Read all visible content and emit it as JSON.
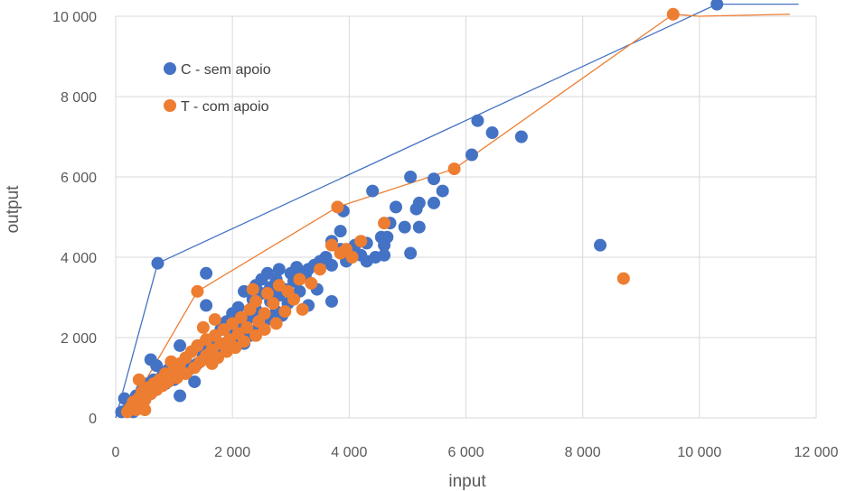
{
  "chart_data": {
    "type": "scatter",
    "xlabel": "input",
    "ylabel": "output",
    "xlim": [
      0,
      12000
    ],
    "ylim": [
      0,
      10000
    ],
    "x_ticks": [
      0,
      2000,
      4000,
      6000,
      8000,
      10000,
      12000
    ],
    "y_ticks": [
      0,
      2000,
      4000,
      6000,
      8000,
      10000
    ],
    "x_tick_labels": [
      "0",
      "2 000",
      "4 000",
      "6 000",
      "8 000",
      "10 000",
      "12 000"
    ],
    "y_tick_labels": [
      "0",
      "2 000",
      "4 000",
      "6 000",
      "8 000",
      "10 000"
    ],
    "grid": "vertical and horizontal major gridlines",
    "legend_position": "top-left",
    "series": [
      {
        "name": "C - sem apoio",
        "color": "#4472C4",
        "points": [
          [
            10300,
            10300
          ],
          [
            6200,
            7400
          ],
          [
            6450,
            7100
          ],
          [
            6950,
            7000
          ],
          [
            6100,
            6550
          ],
          [
            5050,
            6000
          ],
          [
            5450,
            5950
          ],
          [
            5600,
            5650
          ],
          [
            4400,
            5650
          ],
          [
            5200,
            5350
          ],
          [
            5450,
            5350
          ],
          [
            4800,
            5250
          ],
          [
            5150,
            5200
          ],
          [
            3900,
            5150
          ],
          [
            4950,
            4750
          ],
          [
            5200,
            4750
          ],
          [
            3850,
            4650
          ],
          [
            4550,
            4500
          ],
          [
            4650,
            4500
          ],
          [
            4300,
            4350
          ],
          [
            3700,
            4400
          ],
          [
            4100,
            4300
          ],
          [
            4600,
            4300
          ],
          [
            3850,
            4200
          ],
          [
            8300,
            4300
          ],
          [
            4000,
            4100
          ],
          [
            4200,
            4050
          ],
          [
            4600,
            4050
          ],
          [
            5050,
            4100
          ],
          [
            3600,
            4000
          ],
          [
            4450,
            4000
          ],
          [
            3500,
            3900
          ],
          [
            3950,
            3900
          ],
          [
            4300,
            3900
          ],
          [
            3400,
            3800
          ],
          [
            3700,
            3800
          ],
          [
            2800,
            3700
          ],
          [
            3100,
            3750
          ],
          [
            3300,
            3700
          ],
          [
            2600,
            3600
          ],
          [
            3000,
            3600
          ],
          [
            3250,
            3550
          ],
          [
            2500,
            3450
          ],
          [
            2750,
            3450
          ],
          [
            3050,
            3400
          ],
          [
            2400,
            3300
          ],
          [
            2650,
            3250
          ],
          [
            2900,
            3200
          ],
          [
            3150,
            3150
          ],
          [
            3450,
            3200
          ],
          [
            2200,
            3150
          ],
          [
            2500,
            3100
          ],
          [
            2800,
            3050
          ],
          [
            3050,
            3000
          ],
          [
            2350,
            2950
          ],
          [
            2650,
            2900
          ],
          [
            2950,
            2850
          ],
          [
            3300,
            2800
          ],
          [
            3700,
            2900
          ],
          [
            2100,
            2750
          ],
          [
            2400,
            2700
          ],
          [
            2750,
            2650
          ],
          [
            2000,
            2600
          ],
          [
            2300,
            2500
          ],
          [
            2600,
            2450
          ],
          [
            1900,
            2400
          ],
          [
            2150,
            2300
          ],
          [
            2450,
            2250
          ],
          [
            1800,
            2200
          ],
          [
            2050,
            2100
          ],
          [
            2300,
            2050
          ],
          [
            1700,
            2000
          ],
          [
            1950,
            1950
          ],
          [
            2200,
            1850
          ],
          [
            1600,
            1850
          ],
          [
            1850,
            1750
          ],
          [
            1450,
            1800
          ],
          [
            1700,
            1650
          ],
          [
            1100,
            1800
          ],
          [
            1300,
            1650
          ],
          [
            1500,
            1550
          ],
          [
            1200,
            1450
          ],
          [
            1400,
            1350
          ],
          [
            1050,
            1300
          ],
          [
            1250,
            1200
          ],
          [
            900,
            1200
          ],
          [
            1100,
            1100
          ],
          [
            800,
            1050
          ],
          [
            1000,
            950
          ],
          [
            650,
            950
          ],
          [
            850,
            850
          ],
          [
            550,
            850
          ],
          [
            700,
            750
          ],
          [
            450,
            700
          ],
          [
            600,
            600
          ],
          [
            350,
            550
          ],
          [
            500,
            450
          ],
          [
            250,
            400
          ],
          [
            400,
            300
          ],
          [
            200,
            200
          ],
          [
            300,
            150
          ],
          [
            100,
            150
          ],
          [
            700,
            1300
          ],
          [
            600,
            1450
          ],
          [
            1550,
            2800
          ],
          [
            1550,
            3600
          ],
          [
            720,
            3850
          ],
          [
            150,
            480
          ],
          [
            1100,
            550
          ],
          [
            1350,
            900
          ],
          [
            4700,
            4850
          ],
          [
            1750,
            1550
          ],
          [
            2050,
            1800
          ],
          [
            2500,
            2300
          ],
          [
            2850,
            2550
          ]
        ]
      },
      {
        "name": "T - com apoio",
        "color": "#ED7D31",
        "points": [
          [
            9550,
            10050
          ],
          [
            5800,
            6200
          ],
          [
            3800,
            5250
          ],
          [
            4600,
            4850
          ],
          [
            3700,
            4300
          ],
          [
            4200,
            4400
          ],
          [
            4050,
            4000
          ],
          [
            3850,
            4100
          ],
          [
            8700,
            3470
          ],
          [
            1400,
            3150
          ],
          [
            3500,
            3700
          ],
          [
            3150,
            3450
          ],
          [
            2800,
            3300
          ],
          [
            3350,
            3350
          ],
          [
            2950,
            3150
          ],
          [
            2600,
            3100
          ],
          [
            2400,
            2900
          ],
          [
            2700,
            2850
          ],
          [
            3050,
            2950
          ],
          [
            2300,
            2700
          ],
          [
            2550,
            2600
          ],
          [
            2900,
            2650
          ],
          [
            3200,
            2700
          ],
          [
            2150,
            2500
          ],
          [
            2450,
            2400
          ],
          [
            2750,
            2350
          ],
          [
            2000,
            2350
          ],
          [
            2250,
            2250
          ],
          [
            2550,
            2200
          ],
          [
            1850,
            2200
          ],
          [
            2100,
            2100
          ],
          [
            2400,
            2050
          ],
          [
            1700,
            2050
          ],
          [
            1950,
            1950
          ],
          [
            2200,
            1900
          ],
          [
            1550,
            1950
          ],
          [
            1800,
            1850
          ],
          [
            2050,
            1750
          ],
          [
            1400,
            1800
          ],
          [
            1650,
            1700
          ],
          [
            1900,
            1650
          ],
          [
            1300,
            1650
          ],
          [
            1550,
            1550
          ],
          [
            1750,
            1500
          ],
          [
            1200,
            1500
          ],
          [
            1450,
            1400
          ],
          [
            1650,
            1350
          ],
          [
            1100,
            1350
          ],
          [
            1350,
            1250
          ],
          [
            950,
            1400
          ],
          [
            1000,
            1200
          ],
          [
            1200,
            1100
          ],
          [
            850,
            1100
          ],
          [
            1050,
            1000
          ],
          [
            750,
            950
          ],
          [
            900,
            900
          ],
          [
            650,
            850
          ],
          [
            800,
            800
          ],
          [
            550,
            750
          ],
          [
            700,
            700
          ],
          [
            450,
            650
          ],
          [
            600,
            600
          ],
          [
            400,
            500
          ],
          [
            500,
            450
          ],
          [
            300,
            400
          ],
          [
            450,
            350
          ],
          [
            250,
            250
          ],
          [
            350,
            200
          ],
          [
            200,
            150
          ],
          [
            500,
            200
          ],
          [
            400,
            950
          ],
          [
            1700,
            2450
          ],
          [
            1500,
            2250
          ],
          [
            2350,
            3200
          ],
          [
            3950,
            4200
          ]
        ]
      }
    ],
    "frontiers": [
      {
        "series": "C - sem apoio",
        "color": "#4472C4",
        "points": [
          [
            0,
            0
          ],
          [
            720,
            3850
          ],
          [
            10300,
            10300
          ],
          [
            11700,
            10300
          ]
        ]
      },
      {
        "series": "T - com apoio",
        "color": "#ED7D31",
        "points": [
          [
            200,
            150
          ],
          [
            1400,
            3150
          ],
          [
            3800,
            5250
          ],
          [
            5800,
            6200
          ],
          [
            9550,
            10050
          ],
          [
            10000,
            10000
          ],
          [
            11550,
            10050
          ]
        ]
      }
    ]
  }
}
